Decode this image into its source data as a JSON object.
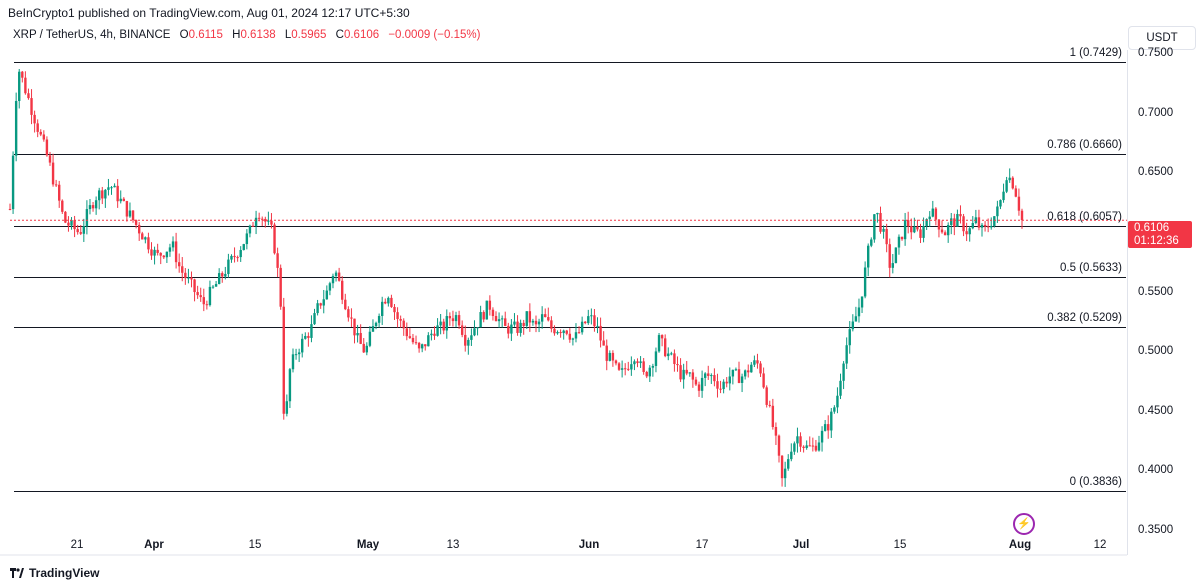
{
  "header": {
    "publisher_line": "BeInCrypto1 published on TradingView.com, Aug 01, 2024 12:17 UTC+5:30"
  },
  "legend": {
    "symbol": "XRP / TetherUS, 4h, BINANCE",
    "open_key": "O",
    "open": "0.6115",
    "high_key": "H",
    "high": "0.6138",
    "low_key": "L",
    "low": "0.5965",
    "close_key": "C",
    "close": "0.6106",
    "change": "−0.0009 (−0.15%)"
  },
  "currency": "USDT",
  "last_price": {
    "price": "0.6106",
    "countdown": "01:12:36"
  },
  "footer": {
    "brand": "TradingView"
  },
  "colors": {
    "up": "#089981",
    "down": "#f23645",
    "fib_line": "#131722",
    "grid": "#e0e3eb"
  },
  "chart_data": {
    "type": "candlestick",
    "ylim": [
      0.33,
      0.77
    ],
    "y_ticks": [
      "0.7500",
      "0.7000",
      "0.6500",
      "0.5500",
      "0.5000",
      "0.4500",
      "0.4000",
      "0.3500"
    ],
    "x_ticks": [
      {
        "label": "21",
        "bold": false
      },
      {
        "label": "Apr",
        "bold": true
      },
      {
        "label": "15",
        "bold": false
      },
      {
        "label": "May",
        "bold": true
      },
      {
        "label": "13",
        "bold": false
      },
      {
        "label": "Jun",
        "bold": true
      },
      {
        "label": "17",
        "bold": false
      },
      {
        "label": "Jul",
        "bold": true
      },
      {
        "label": "15",
        "bold": false
      },
      {
        "label": "Aug",
        "bold": true
      },
      {
        "label": "12",
        "bold": false
      }
    ],
    "fib_levels": [
      {
        "label": "1 (0.7429)",
        "value": 0.7429
      },
      {
        "label": "0.786 (0.6660)",
        "value": 0.666
      },
      {
        "label": "0.618 (0.6057)",
        "value": 0.6057
      },
      {
        "label": "0.5 (0.5633)",
        "value": 0.5633
      },
      {
        "label": "0.382 (0.5209)",
        "value": 0.5209
      },
      {
        "label": "0 (0.3836)",
        "value": 0.3836
      }
    ],
    "price_path": [
      [
        0,
        0.62
      ],
      [
        1,
        0.74
      ],
      [
        3,
        0.7
      ],
      [
        5,
        0.66
      ],
      [
        7,
        0.61
      ],
      [
        9,
        0.6
      ],
      [
        11,
        0.63
      ],
      [
        13,
        0.64
      ],
      [
        15,
        0.62
      ],
      [
        17,
        0.6
      ],
      [
        19,
        0.58
      ],
      [
        21,
        0.59
      ],
      [
        22,
        0.57
      ],
      [
        23,
        0.56
      ],
      [
        25,
        0.54
      ],
      [
        27,
        0.56
      ],
      [
        29,
        0.58
      ],
      [
        31,
        0.6
      ],
      [
        32,
        0.62
      ],
      [
        34,
        0.6
      ],
      [
        35,
        0.55
      ],
      [
        35.3,
        0.48
      ],
      [
        35.6,
        0.42
      ],
      [
        36,
        0.48
      ],
      [
        37,
        0.5
      ],
      [
        38,
        0.51
      ],
      [
        39,
        0.52
      ],
      [
        40,
        0.54
      ],
      [
        41,
        0.55
      ],
      [
        42,
        0.57
      ],
      [
        43,
        0.55
      ],
      [
        44,
        0.53
      ],
      [
        45,
        0.51
      ],
      [
        46,
        0.5
      ],
      [
        47,
        0.52
      ],
      [
        48,
        0.54
      ],
      [
        49,
        0.55
      ],
      [
        50,
        0.53
      ],
      [
        51,
        0.52
      ],
      [
        52,
        0.51
      ],
      [
        53,
        0.5
      ],
      [
        54,
        0.51
      ],
      [
        55,
        0.52
      ],
      [
        56,
        0.52
      ],
      [
        57,
        0.53
      ],
      [
        58,
        0.53
      ],
      [
        59,
        0.51
      ],
      [
        60,
        0.52
      ],
      [
        61,
        0.53
      ],
      [
        62,
        0.54
      ],
      [
        63,
        0.53
      ],
      [
        64,
        0.52
      ],
      [
        65,
        0.52
      ],
      [
        66,
        0.52
      ],
      [
        67,
        0.53
      ],
      [
        68,
        0.52
      ],
      [
        69,
        0.53
      ],
      [
        70,
        0.52
      ],
      [
        71,
        0.52
      ],
      [
        72,
        0.52
      ],
      [
        73,
        0.51
      ],
      [
        74,
        0.52
      ],
      [
        75,
        0.53
      ],
      [
        76,
        0.52
      ],
      [
        77,
        0.5
      ],
      [
        78,
        0.49
      ],
      [
        79,
        0.48
      ],
      [
        80,
        0.49
      ],
      [
        81,
        0.5
      ],
      [
        82,
        0.48
      ],
      [
        83,
        0.49
      ],
      [
        84,
        0.51
      ],
      [
        85,
        0.5
      ],
      [
        86,
        0.49
      ],
      [
        87,
        0.48
      ],
      [
        88,
        0.48
      ],
      [
        89,
        0.47
      ],
      [
        90,
        0.48
      ],
      [
        91,
        0.48
      ],
      [
        92,
        0.47
      ],
      [
        93,
        0.48
      ],
      [
        94,
        0.48
      ],
      [
        95,
        0.48
      ],
      [
        96,
        0.49
      ],
      [
        97,
        0.49
      ],
      [
        98,
        0.46
      ],
      [
        99,
        0.43
      ],
      [
        100,
        0.39
      ],
      [
        101,
        0.42
      ],
      [
        102,
        0.43
      ],
      [
        103,
        0.42
      ],
      [
        104,
        0.42
      ],
      [
        105,
        0.43
      ],
      [
        106,
        0.44
      ],
      [
        107,
        0.46
      ],
      [
        108,
        0.5
      ],
      [
        109,
        0.52
      ],
      [
        110,
        0.54
      ],
      [
        111,
        0.58
      ],
      [
        112,
        0.62
      ],
      [
        113,
        0.6
      ],
      [
        114,
        0.57
      ],
      [
        115,
        0.59
      ],
      [
        116,
        0.61
      ],
      [
        117,
        0.6
      ],
      [
        118,
        0.6
      ],
      [
        119,
        0.62
      ],
      [
        120,
        0.61
      ],
      [
        121,
        0.6
      ],
      [
        122,
        0.61
      ],
      [
        123,
        0.61
      ],
      [
        124,
        0.6
      ],
      [
        125,
        0.61
      ],
      [
        126,
        0.6
      ],
      [
        127,
        0.61
      ],
      [
        128,
        0.62
      ],
      [
        129,
        0.65
      ],
      [
        130,
        0.64
      ],
      [
        131,
        0.6106
      ]
    ]
  }
}
